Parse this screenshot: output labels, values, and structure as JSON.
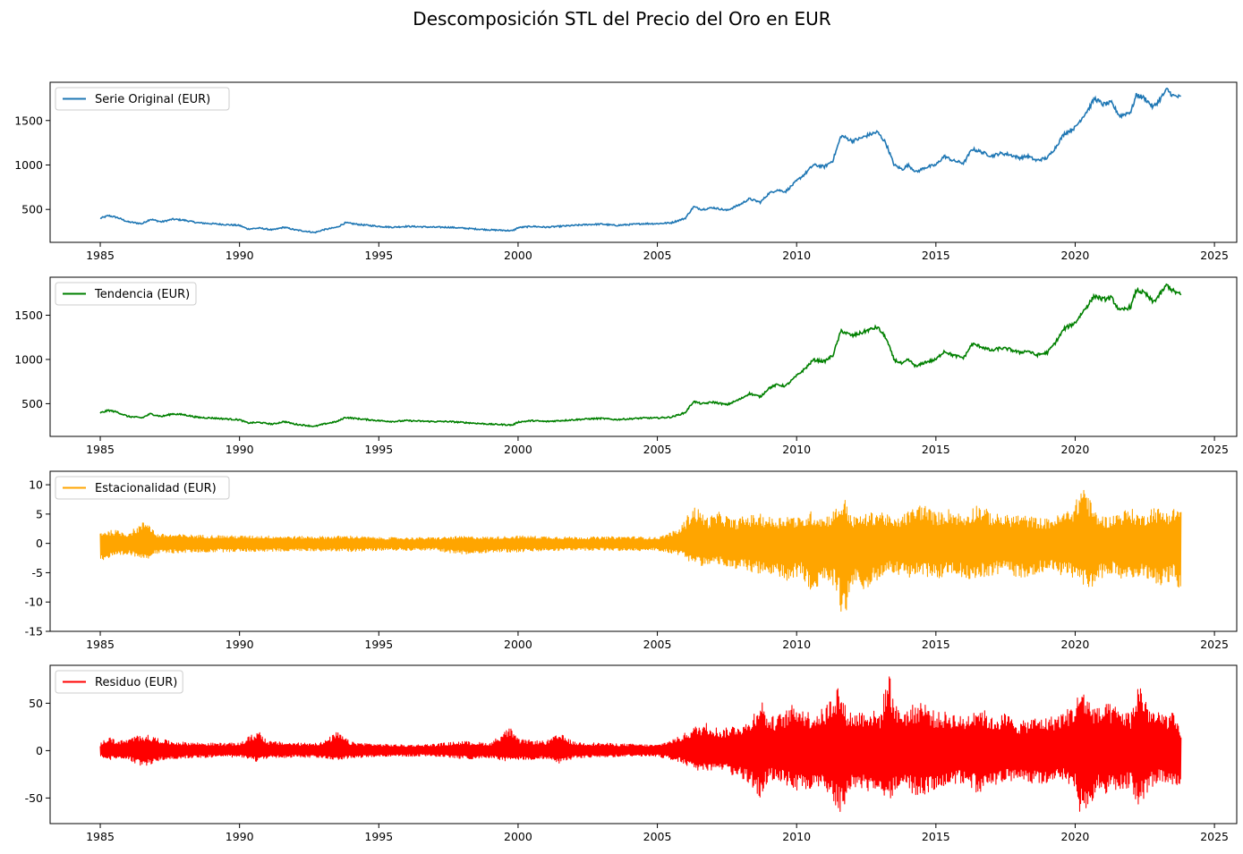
{
  "figure": {
    "title": "Descomposición STL del Precio del Oro en EUR"
  },
  "chart_data": [
    {
      "type": "line",
      "title": "",
      "legend": {
        "label": "Serie Original (EUR)",
        "placement": "upper-left"
      },
      "color": "#1f77b4",
      "xlim": [
        1983.2,
        2025.8
      ],
      "ylim": [
        130,
        1930
      ],
      "xticks": [
        1985,
        1990,
        1995,
        2000,
        2005,
        2010,
        2015,
        2020,
        2025
      ],
      "yticks": [
        500,
        1000,
        1500
      ],
      "grid": false,
      "series": [
        {
          "name": "Serie Original (EUR)",
          "x": [
            1985.0,
            1985.3,
            1985.6,
            1986.0,
            1986.5,
            1986.8,
            1987.2,
            1987.6,
            1988.0,
            1988.5,
            1989.0,
            1989.5,
            1990.0,
            1990.3,
            1990.7,
            1991.2,
            1991.6,
            1992.0,
            1992.5,
            1992.7,
            1993.0,
            1993.5,
            1993.8,
            1994.3,
            1995.0,
            1995.5,
            1996.0,
            1996.5,
            1997.0,
            1997.5,
            1998.0,
            1998.5,
            1999.0,
            1999.5,
            1999.8,
            2000.0,
            2000.5,
            2001.0,
            2001.5,
            2002.0,
            2002.5,
            2003.0,
            2003.5,
            2004.0,
            2004.5,
            2005.0,
            2005.5,
            2006.0,
            2006.3,
            2006.6,
            2007.0,
            2007.5,
            2008.0,
            2008.3,
            2008.7,
            2009.0,
            2009.3,
            2009.6,
            2010.0,
            2010.3,
            2010.6,
            2011.0,
            2011.3,
            2011.6,
            2011.8,
            2012.0,
            2012.3,
            2012.6,
            2012.9,
            2013.2,
            2013.5,
            2013.8,
            2014.0,
            2014.3,
            2014.6,
            2015.0,
            2015.3,
            2015.6,
            2016.0,
            2016.3,
            2016.6,
            2017.0,
            2017.3,
            2017.6,
            2018.0,
            2018.3,
            2018.6,
            2019.0,
            2019.3,
            2019.6,
            2020.0,
            2020.2,
            2020.5,
            2020.7,
            2021.0,
            2021.3,
            2021.6,
            2022.0,
            2022.2,
            2022.5,
            2022.8,
            2023.0,
            2023.3,
            2023.5,
            2023.8
          ],
          "y": [
            400,
            430,
            410,
            360,
            340,
            390,
            360,
            390,
            380,
            350,
            340,
            330,
            320,
            280,
            290,
            270,
            300,
            270,
            250,
            240,
            270,
            300,
            350,
            330,
            310,
            300,
            310,
            305,
            300,
            300,
            290,
            280,
            270,
            265,
            260,
            295,
            310,
            300,
            310,
            320,
            330,
            335,
            320,
            330,
            340,
            340,
            350,
            400,
            530,
            500,
            520,
            490,
            560,
            620,
            580,
            680,
            720,
            700,
            820,
            900,
            1000,
            980,
            1050,
            1330,
            1300,
            1270,
            1300,
            1340,
            1370,
            1250,
            1000,
            950,
            1000,
            920,
            970,
            1000,
            1100,
            1050,
            1020,
            1180,
            1150,
            1100,
            1130,
            1120,
            1080,
            1100,
            1050,
            1080,
            1200,
            1350,
            1420,
            1510,
            1640,
            1750,
            1680,
            1700,
            1550,
            1600,
            1790,
            1750,
            1650,
            1720,
            1850,
            1780,
            1760
          ]
        }
      ]
    },
    {
      "type": "line",
      "title": "",
      "legend": {
        "label": "Tendencia (EUR)",
        "placement": "upper-left"
      },
      "color": "#008000",
      "xlim": [
        1983.2,
        2025.8
      ],
      "ylim": [
        130,
        1930
      ],
      "xticks": [
        1985,
        1990,
        1995,
        2000,
        2005,
        2010,
        2015,
        2020,
        2025
      ],
      "yticks": [
        500,
        1000,
        1500
      ],
      "grid": false,
      "series": [
        {
          "name": "Tendencia (EUR)",
          "x": [
            1985.0,
            1985.3,
            1985.6,
            1986.0,
            1986.5,
            1986.8,
            1987.2,
            1987.6,
            1988.0,
            1988.5,
            1989.0,
            1989.5,
            1990.0,
            1990.3,
            1990.7,
            1991.2,
            1991.6,
            1992.0,
            1992.5,
            1992.7,
            1993.0,
            1993.5,
            1993.8,
            1994.3,
            1995.0,
            1995.5,
            1996.0,
            1996.5,
            1997.0,
            1997.5,
            1998.0,
            1998.5,
            1999.0,
            1999.5,
            1999.8,
            2000.0,
            2000.5,
            2001.0,
            2001.5,
            2002.0,
            2002.5,
            2003.0,
            2003.5,
            2004.0,
            2004.5,
            2005.0,
            2005.5,
            2006.0,
            2006.3,
            2006.6,
            2007.0,
            2007.5,
            2008.0,
            2008.3,
            2008.7,
            2009.0,
            2009.3,
            2009.6,
            2010.0,
            2010.3,
            2010.6,
            2011.0,
            2011.3,
            2011.6,
            2011.8,
            2012.0,
            2012.3,
            2012.6,
            2012.9,
            2013.2,
            2013.5,
            2013.8,
            2014.0,
            2014.3,
            2014.6,
            2015.0,
            2015.3,
            2015.6,
            2016.0,
            2016.3,
            2016.6,
            2017.0,
            2017.3,
            2017.6,
            2018.0,
            2018.3,
            2018.6,
            2019.0,
            2019.3,
            2019.6,
            2020.0,
            2020.2,
            2020.5,
            2020.7,
            2021.0,
            2021.3,
            2021.6,
            2022.0,
            2022.2,
            2022.5,
            2022.8,
            2023.0,
            2023.3,
            2023.5,
            2023.8
          ],
          "y": [
            395,
            425,
            405,
            355,
            340,
            385,
            355,
            385,
            375,
            345,
            338,
            328,
            318,
            282,
            288,
            268,
            298,
            268,
            250,
            242,
            268,
            298,
            345,
            328,
            308,
            298,
            308,
            302,
            298,
            298,
            288,
            278,
            268,
            263,
            258,
            292,
            308,
            298,
            308,
            318,
            328,
            333,
            320,
            328,
            338,
            338,
            348,
            398,
            525,
            498,
            518,
            488,
            555,
            615,
            578,
            675,
            715,
            698,
            815,
            895,
            995,
            978,
            1045,
            1325,
            1295,
            1268,
            1298,
            1335,
            1365,
            1248,
            998,
            948,
            998,
            918,
            968,
            998,
            1095,
            1048,
            1018,
            1175,
            1148,
            1098,
            1128,
            1118,
            1078,
            1098,
            1048,
            1078,
            1195,
            1345,
            1415,
            1505,
            1635,
            1720,
            1678,
            1698,
            1548,
            1598,
            1785,
            1748,
            1648,
            1718,
            1845,
            1778,
            1730
          ]
        }
      ]
    },
    {
      "type": "line",
      "title": "",
      "legend": {
        "label": "Estacionalidad (EUR)",
        "placement": "upper-left"
      },
      "color": "#ffa500",
      "xlim": [
        1983.2,
        2025.8
      ],
      "ylim": [
        -15,
        12.3
      ],
      "xticks": [
        1985,
        1990,
        1995,
        2000,
        2005,
        2010,
        2015,
        2020,
        2025
      ],
      "yticks": [
        -15,
        -10,
        -5,
        0,
        5,
        10
      ],
      "grid": false,
      "series": [
        {
          "name": "Estacionalidad (EUR)",
          "x": [
            1985.0,
            1985.5,
            1986.0,
            1986.7,
            1987.0,
            1988.0,
            1989.0,
            1990.0,
            1991.0,
            1992.0,
            1993.0,
            1994.0,
            1995.0,
            1996.0,
            1997.0,
            1998.0,
            1999.0,
            2000.0,
            2001.0,
            2002.0,
            2003.0,
            2004.0,
            2005.0,
            2005.8,
            2006.3,
            2006.8,
            2007.3,
            2007.7,
            2008.2,
            2008.7,
            2009.2,
            2009.7,
            2010.2,
            2010.5,
            2011.0,
            2011.4,
            2011.7,
            2012.0,
            2012.5,
            2013.0,
            2013.5,
            2014.0,
            2014.5,
            2015.0,
            2015.5,
            2016.0,
            2016.5,
            2017.0,
            2017.5,
            2018.0,
            2018.5,
            2019.0,
            2019.5,
            2020.0,
            2020.3,
            2020.6,
            2020.8,
            2021.2,
            2021.6,
            2022.0,
            2022.4,
            2022.8,
            2023.2,
            2023.5,
            2023.8
          ],
          "upper": [
            2.0,
            2.3,
            1.8,
            4.2,
            1.6,
            1.5,
            1.4,
            1.3,
            1.3,
            1.2,
            1.2,
            1.3,
            1.0,
            1.0,
            1.0,
            1.2,
            1.1,
            1.3,
            1.2,
            1.1,
            1.1,
            1.2,
            1.0,
            2.5,
            6.6,
            4.5,
            5.5,
            4.0,
            4.8,
            5.0,
            4.3,
            5.0,
            4.2,
            5.5,
            4.5,
            6.0,
            8.0,
            4.5,
            5.0,
            5.8,
            4.0,
            5.5,
            7.0,
            5.2,
            6.0,
            4.8,
            7.0,
            5.2,
            4.8,
            5.0,
            4.5,
            4.2,
            5.0,
            6.8,
            11.0,
            6.5,
            5.0,
            4.5,
            5.5,
            6.0,
            4.8,
            6.5,
            5.5,
            6.0,
            6.5
          ],
          "lower": [
            -3.0,
            -2.5,
            -2.0,
            -2.6,
            -1.8,
            -1.6,
            -1.5,
            -1.4,
            -1.4,
            -1.3,
            -1.3,
            -1.4,
            -1.2,
            -1.2,
            -1.2,
            -2.0,
            -1.5,
            -1.5,
            -1.3,
            -1.2,
            -1.2,
            -1.3,
            -1.2,
            -2.0,
            -3.5,
            -4.0,
            -3.5,
            -5.0,
            -4.5,
            -5.5,
            -6.0,
            -6.5,
            -5.5,
            -9.5,
            -6.0,
            -7.5,
            -14.0,
            -7.5,
            -8.0,
            -6.0,
            -5.0,
            -6.0,
            -5.5,
            -6.5,
            -5.0,
            -6.0,
            -6.0,
            -5.5,
            -5.0,
            -6.0,
            -5.5,
            -4.5,
            -5.5,
            -6.0,
            -7.0,
            -8.5,
            -6.5,
            -5.0,
            -6.0,
            -7.0,
            -5.5,
            -6.5,
            -7.5,
            -6.0,
            -8.5
          ]
        }
      ]
    },
    {
      "type": "line",
      "title": "",
      "legend": {
        "label": "Residuo (EUR)",
        "placement": "upper-left"
      },
      "color": "#ff0000",
      "xlim": [
        1983.2,
        2025.8
      ],
      "ylim": [
        -77,
        90
      ],
      "xticks": [
        1985,
        1990,
        1995,
        2000,
        2005,
        2010,
        2015,
        2020,
        2025
      ],
      "yticks": [
        -50,
        0,
        50
      ],
      "grid": false,
      "series": [
        {
          "name": "Residuo (EUR)",
          "x": [
            1985.0,
            1985.3,
            1985.6,
            1986.0,
            1986.5,
            1987.0,
            1987.5,
            1988.0,
            1989.0,
            1990.0,
            1990.7,
            1991.0,
            1992.0,
            1993.0,
            1993.5,
            1994.0,
            1995.0,
            1996.0,
            1997.0,
            1998.0,
            1999.0,
            1999.7,
            2000.0,
            2001.0,
            2001.5,
            2002.0,
            2003.0,
            2004.0,
            2005.0,
            2005.8,
            2006.3,
            2006.8,
            2007.3,
            2007.8,
            2008.3,
            2008.7,
            2009.0,
            2009.5,
            2010.0,
            2010.5,
            2011.0,
            2011.5,
            2011.7,
            2012.0,
            2012.5,
            2013.0,
            2013.3,
            2013.6,
            2014.0,
            2014.5,
            2015.0,
            2015.5,
            2016.0,
            2016.5,
            2017.0,
            2017.5,
            2018.0,
            2018.5,
            2019.0,
            2019.5,
            2020.0,
            2020.2,
            2020.5,
            2020.8,
            2021.2,
            2021.6,
            2022.0,
            2022.3,
            2022.7,
            2023.0,
            2023.5,
            2023.8
          ],
          "upper": [
            8,
            15,
            10,
            12,
            18,
            14,
            10,
            9,
            8,
            8,
            22,
            10,
            8,
            9,
            20,
            9,
            7,
            6,
            7,
            10,
            8,
            25,
            12,
            10,
            18,
            9,
            8,
            7,
            6,
            15,
            25,
            30,
            22,
            28,
            30,
            58,
            35,
            40,
            52,
            40,
            45,
            73,
            50,
            40,
            45,
            40,
            87,
            45,
            45,
            55,
            40,
            42,
            35,
            50,
            35,
            40,
            30,
            35,
            35,
            40,
            50,
            70,
            55,
            45,
            50,
            45,
            40,
            76,
            45,
            40,
            40,
            20
          ],
          "lower": [
            -6,
            -10,
            -8,
            -9,
            -18,
            -12,
            -9,
            -8,
            -7,
            -7,
            -12,
            -8,
            -7,
            -8,
            -10,
            -8,
            -6,
            -6,
            -6,
            -9,
            -8,
            -12,
            -10,
            -9,
            -14,
            -8,
            -7,
            -6,
            -6,
            -12,
            -20,
            -25,
            -20,
            -28,
            -35,
            -52,
            -30,
            -35,
            -45,
            -40,
            -45,
            -65,
            -63,
            -40,
            -45,
            -40,
            -55,
            -40,
            -45,
            -50,
            -40,
            -35,
            -35,
            -45,
            -38,
            -35,
            -30,
            -35,
            -35,
            -30,
            -40,
            -72,
            -65,
            -45,
            -45,
            -40,
            -40,
            -60,
            -40,
            -35,
            -38,
            -40
          ]
        }
      ]
    }
  ]
}
